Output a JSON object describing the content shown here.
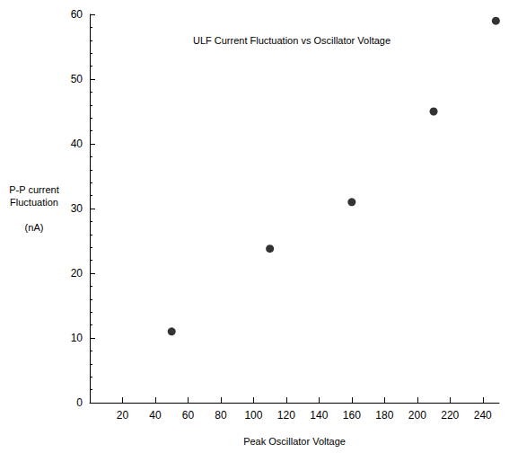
{
  "chart_data": {
    "type": "scatter",
    "title": "ULF Current Fluctuation vs Oscillator Voltage",
    "x_label": "Peak Oscillator Voltage",
    "y_label": "P-P current\nFluctuation\n\n(nA)",
    "x": [
      50,
      110,
      160,
      210,
      248
    ],
    "values": [
      11,
      23.8,
      31,
      45,
      59
    ],
    "color": "#000000",
    "marker": "circle",
    "xlim": [
      0,
      250
    ],
    "xticks": [
      20,
      40,
      60,
      80,
      100,
      120,
      140,
      160,
      180,
      200,
      220,
      240
    ],
    "ylim": [
      0,
      60
    ],
    "yticks": [
      0,
      10,
      20,
      30,
      40,
      50,
      60
    ],
    "grid": false
  }
}
